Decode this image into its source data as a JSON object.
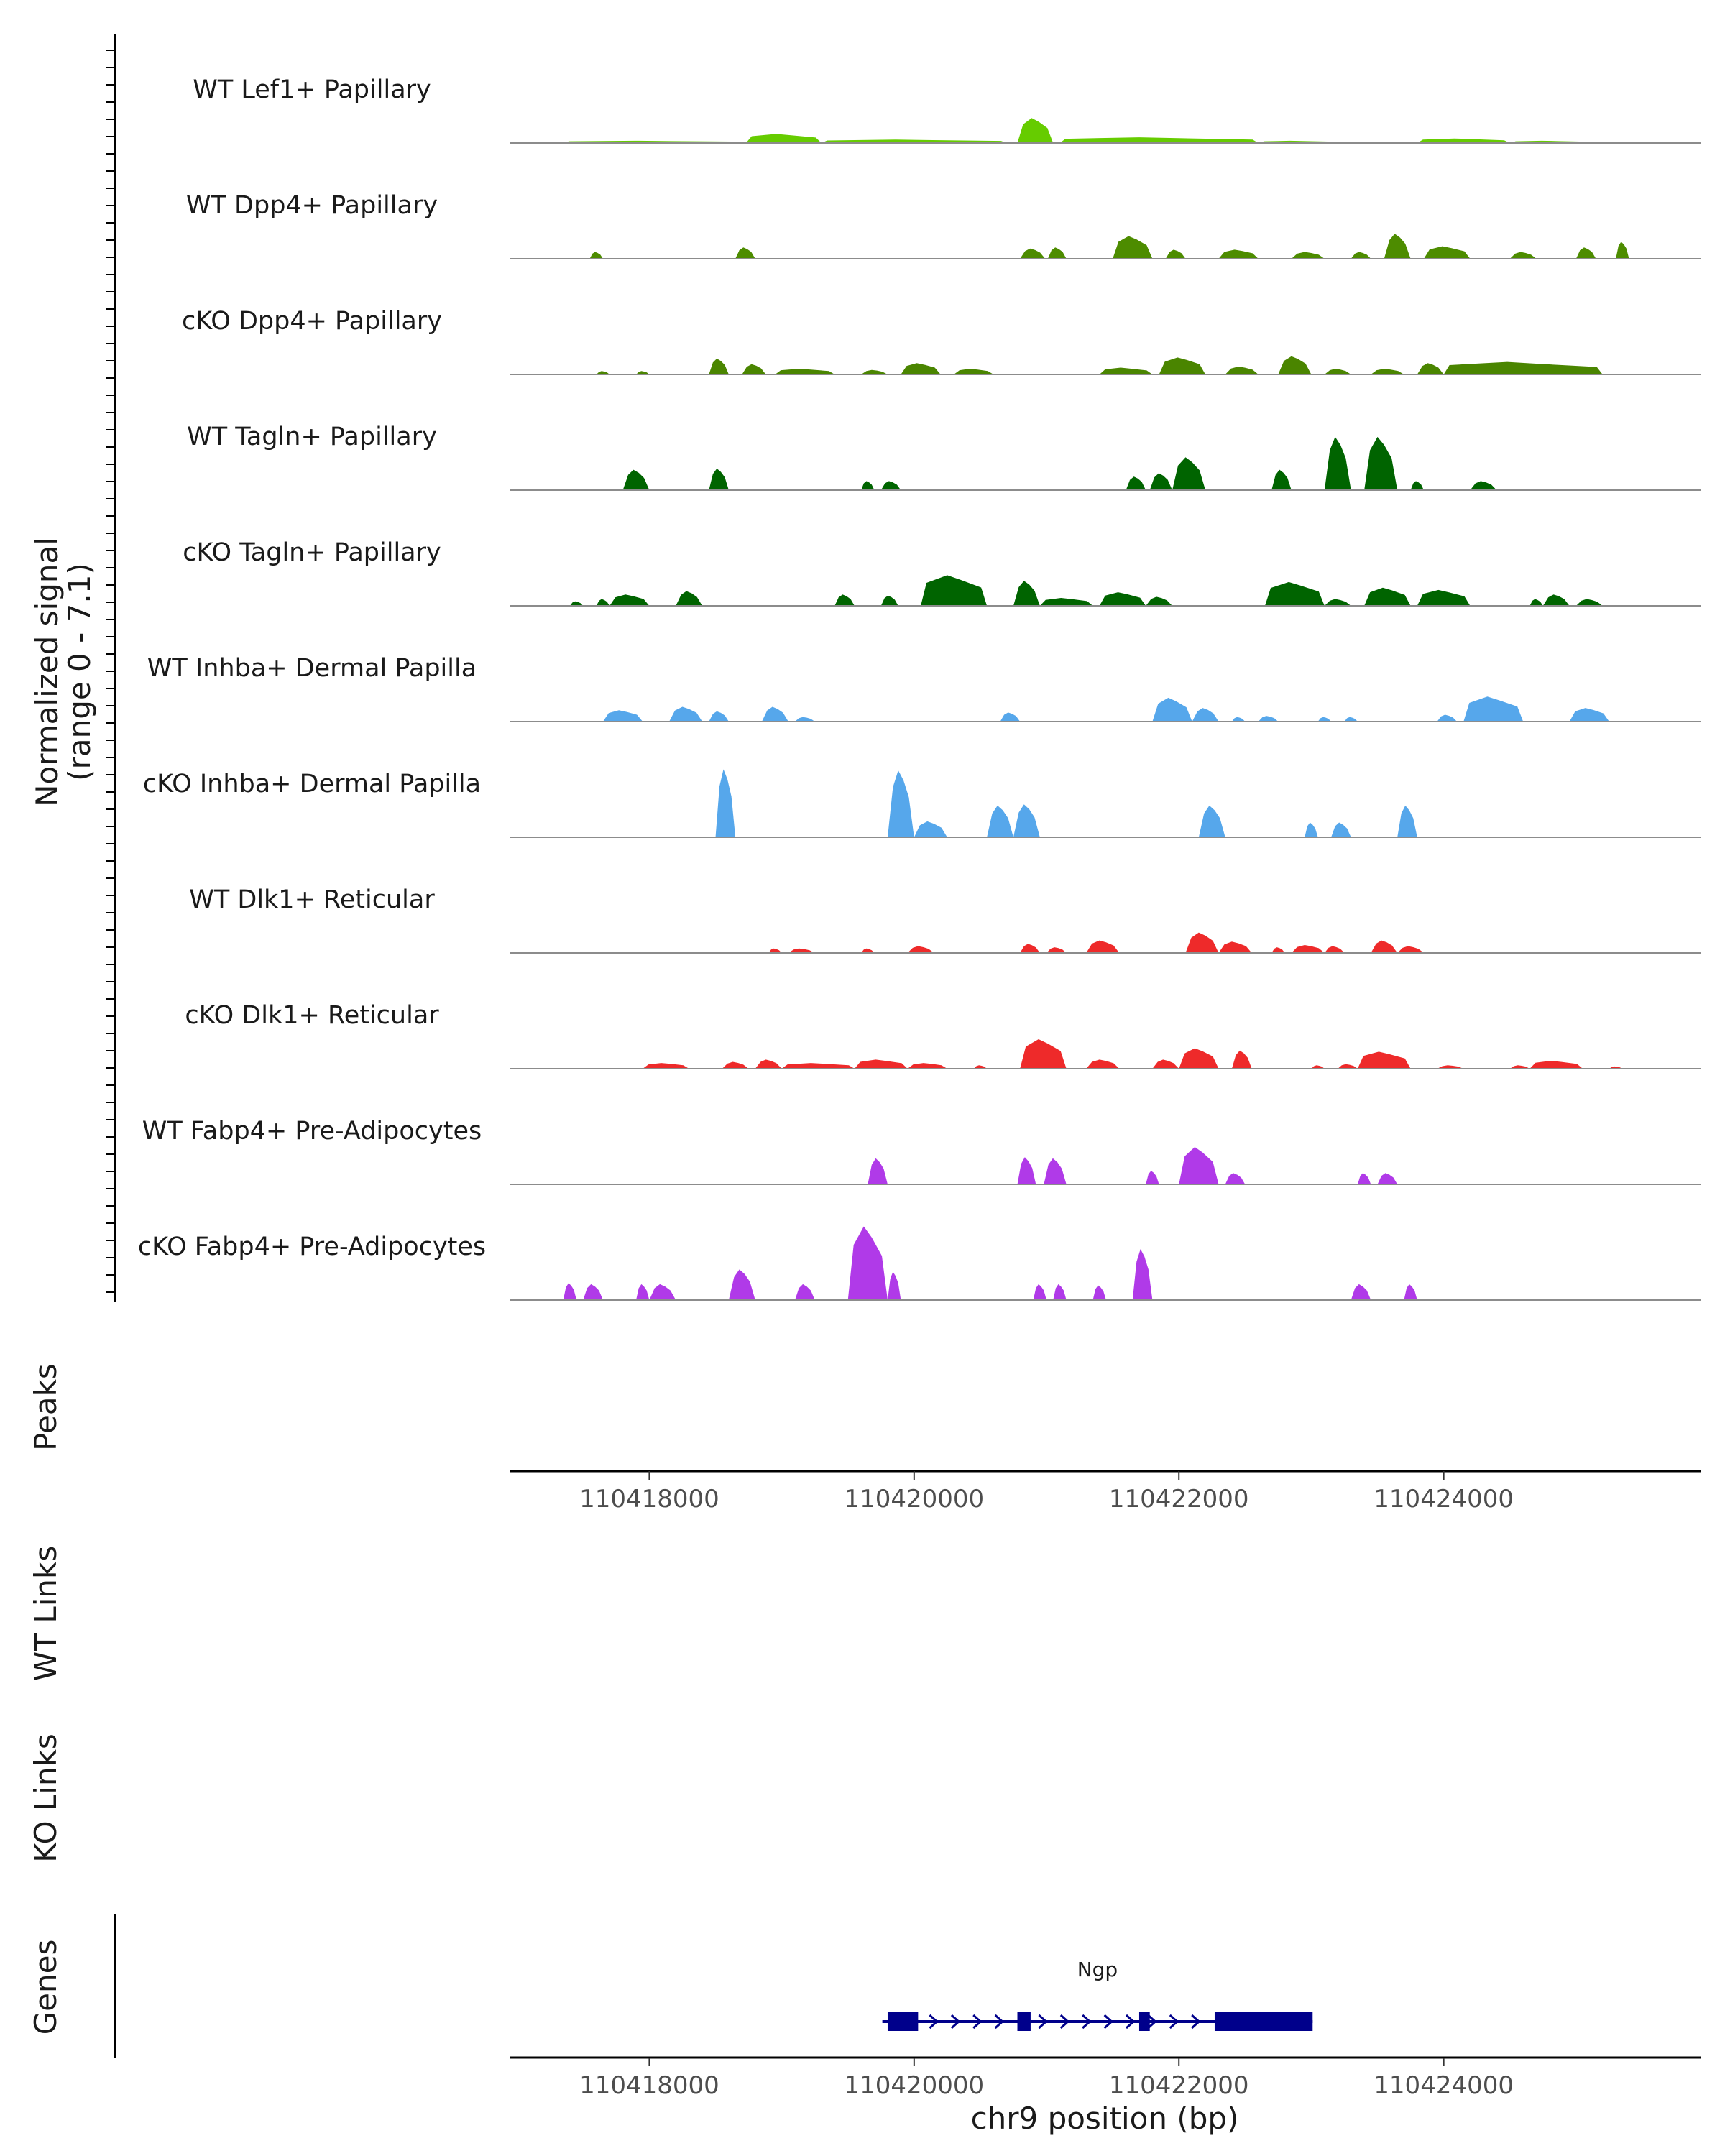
{
  "chart_data": {
    "type": "coverage",
    "chromosome": "chr9",
    "xlim": [
      110416950,
      110425940
    ],
    "xlabel": "chr9 position (bp)",
    "x_ticks": [
      110418000,
      110420000,
      110422000,
      110424000
    ],
    "x_tick_labels": [
      "110418000",
      "110420000",
      "110422000",
      "110424000"
    ],
    "signal_ylabel": "Normalized signal",
    "signal_ylabel_range": "(range 0 - 7.1)",
    "ylim": [
      0,
      7.1
    ],
    "tracks": [
      {
        "name": "WT Lef1+ Papillary",
        "color": "#66cc00",
        "peaks": [
          [
            110417350,
            110418700,
            0.2
          ],
          [
            110418730,
            110419300,
            0.8
          ],
          [
            110419300,
            110420700,
            0.3
          ],
          [
            110420780,
            110421050,
            2.2
          ],
          [
            110421100,
            110422600,
            0.5
          ],
          [
            110422600,
            110423200,
            0.2
          ],
          [
            110423800,
            110424500,
            0.4
          ],
          [
            110424500,
            110425100,
            0.2
          ]
        ]
      },
      {
        "name": "WT Dpp4+ Papillary",
        "color": "#4d8c00",
        "peaks": [
          [
            110417550,
            110417650,
            0.6
          ],
          [
            110418650,
            110418800,
            1.0
          ],
          [
            110420800,
            110420990,
            0.9
          ],
          [
            110421010,
            110421150,
            1.0
          ],
          [
            110421500,
            110421800,
            2.0
          ],
          [
            110421900,
            110422050,
            0.8
          ],
          [
            110422300,
            110422600,
            0.8
          ],
          [
            110422850,
            110423100,
            0.6
          ],
          [
            110423300,
            110423450,
            0.6
          ],
          [
            110423550,
            110423750,
            2.2
          ],
          [
            110423850,
            110424200,
            1.1
          ],
          [
            110424500,
            110424700,
            0.6
          ],
          [
            110425000,
            110425150,
            1.0
          ],
          [
            110425300,
            110425400,
            1.5
          ]
        ]
      },
      {
        "name": "cKO Dpp4+ Papillary",
        "color": "#4a8500",
        "peaks": [
          [
            110417600,
            110417700,
            0.3
          ],
          [
            110417900,
            110418000,
            0.3
          ],
          [
            110418450,
            110418600,
            1.4
          ],
          [
            110418700,
            110418880,
            0.9
          ],
          [
            110418950,
            110419400,
            0.5
          ],
          [
            110419600,
            110419800,
            0.4
          ],
          [
            110419900,
            110420200,
            1.0
          ],
          [
            110420300,
            110420600,
            0.5
          ],
          [
            110421400,
            110421800,
            0.6
          ],
          [
            110421850,
            110422200,
            1.5
          ],
          [
            110422350,
            110422600,
            0.7
          ],
          [
            110422750,
            110423000,
            1.6
          ],
          [
            110423100,
            110423300,
            0.5
          ],
          [
            110423450,
            110423700,
            0.5
          ],
          [
            110423800,
            110424000,
            1.0
          ],
          [
            110424000,
            110425200,
            1.1
          ]
        ]
      },
      {
        "name": "WT Tagln+ Papillary",
        "color": "#006400",
        "peaks": [
          [
            110417800,
            110418000,
            1.8
          ],
          [
            110418450,
            110418600,
            1.9
          ],
          [
            110419600,
            110419700,
            0.8
          ],
          [
            110419750,
            110419900,
            0.8
          ],
          [
            110421600,
            110421750,
            1.2
          ],
          [
            110421780,
            110421950,
            1.5
          ],
          [
            110421950,
            110422200,
            2.9
          ],
          [
            110422700,
            110422850,
            1.8
          ],
          [
            110423100,
            110423300,
            4.7
          ],
          [
            110423400,
            110423650,
            4.7
          ],
          [
            110423750,
            110423850,
            0.8
          ],
          [
            110424200,
            110424400,
            0.8
          ]
        ]
      },
      {
        "name": "cKO Tagln+ Papillary",
        "color": "#006400",
        "peaks": [
          [
            110417400,
            110417500,
            0.4
          ],
          [
            110417600,
            110417700,
            0.6
          ],
          [
            110417700,
            110418000,
            1.0
          ],
          [
            110418200,
            110418400,
            1.3
          ],
          [
            110419400,
            110419550,
            1.0
          ],
          [
            110419750,
            110419880,
            0.9
          ],
          [
            110420050,
            110420550,
            2.7
          ],
          [
            110420750,
            110420950,
            2.2
          ],
          [
            110420950,
            110421350,
            0.7
          ],
          [
            110421400,
            110421750,
            1.2
          ],
          [
            110421750,
            110421950,
            0.8
          ],
          [
            110422650,
            110423100,
            2.1
          ],
          [
            110423100,
            110423300,
            0.6
          ],
          [
            110423400,
            110423750,
            1.6
          ],
          [
            110423800,
            110424200,
            1.4
          ],
          [
            110424650,
            110424750,
            0.6
          ],
          [
            110424750,
            110424950,
            1.0
          ],
          [
            110425000,
            110425200,
            0.6
          ]
        ]
      },
      {
        "name": "WT Inhba+ Dermal Papilla",
        "color": "#56a7eb",
        "peaks": [
          [
            110417650,
            110417950,
            1.0
          ],
          [
            110418150,
            110418400,
            1.3
          ],
          [
            110418450,
            110418600,
            0.9
          ],
          [
            110418850,
            110419050,
            1.3
          ],
          [
            110419100,
            110419250,
            0.4
          ],
          [
            110420650,
            110420800,
            0.8
          ],
          [
            110421800,
            110422100,
            2.1
          ],
          [
            110422100,
            110422300,
            1.2
          ],
          [
            110422400,
            110422500,
            0.4
          ],
          [
            110422600,
            110422750,
            0.5
          ],
          [
            110423050,
            110423150,
            0.4
          ],
          [
            110423250,
            110423350,
            0.4
          ],
          [
            110423950,
            110424100,
            0.6
          ],
          [
            110424150,
            110424600,
            2.2
          ],
          [
            110424950,
            110425250,
            1.2
          ]
        ]
      },
      {
        "name": "cKO Inhba+ Dermal Papilla",
        "color": "#56a7eb",
        "peaks": [
          [
            110418500,
            110418650,
            6.0
          ],
          [
            110419800,
            110420000,
            5.9
          ],
          [
            110420000,
            110420250,
            1.4
          ],
          [
            110420550,
            110420750,
            2.8
          ],
          [
            110420750,
            110420950,
            2.9
          ],
          [
            110422150,
            110422350,
            2.8
          ],
          [
            110422950,
            110423050,
            1.3
          ],
          [
            110423150,
            110423300,
            1.3
          ],
          [
            110423650,
            110423800,
            2.8
          ]
        ]
      },
      {
        "name": "WT Dlk1+ Reticular",
        "color": "#ee2a2a",
        "peaks": [
          [
            110418900,
            110419000,
            0.4
          ],
          [
            110419050,
            110419250,
            0.4
          ],
          [
            110419600,
            110419700,
            0.4
          ],
          [
            110419950,
            110420150,
            0.6
          ],
          [
            110420800,
            110420950,
            0.8
          ],
          [
            110421000,
            110421150,
            0.5
          ],
          [
            110421300,
            110421550,
            1.1
          ],
          [
            110422050,
            110422300,
            1.8
          ],
          [
            110422300,
            110422550,
            1.0
          ],
          [
            110422700,
            110422800,
            0.5
          ],
          [
            110422850,
            110423100,
            0.7
          ],
          [
            110423100,
            110423250,
            0.6
          ],
          [
            110423450,
            110423650,
            1.1
          ],
          [
            110423650,
            110423850,
            0.6
          ]
        ]
      },
      {
        "name": "cKO Dlk1+ Reticular",
        "color": "#ee2a2a",
        "peaks": [
          [
            110417950,
            110418300,
            0.5
          ],
          [
            110418550,
            110418750,
            0.6
          ],
          [
            110418800,
            110419000,
            0.8
          ],
          [
            110419000,
            110419550,
            0.5
          ],
          [
            110419550,
            110419950,
            0.8
          ],
          [
            110419950,
            110420250,
            0.5
          ],
          [
            110420450,
            110420550,
            0.3
          ],
          [
            110420800,
            110421150,
            2.6
          ],
          [
            110421300,
            110421550,
            0.8
          ],
          [
            110421800,
            110422000,
            0.8
          ],
          [
            110422000,
            110422300,
            1.8
          ],
          [
            110422400,
            110422550,
            1.6
          ],
          [
            110423000,
            110423100,
            0.3
          ],
          [
            110423200,
            110423350,
            0.4
          ],
          [
            110423350,
            110423750,
            1.5
          ],
          [
            110423950,
            110424150,
            0.3
          ],
          [
            110424500,
            110424650,
            0.3
          ],
          [
            110424650,
            110425050,
            0.7
          ],
          [
            110425250,
            110425350,
            0.2
          ]
        ]
      },
      {
        "name": "WT Fabp4+ Pre-Adipocytes",
        "color": "#b03ae8",
        "peaks": [
          [
            110419650,
            110419800,
            2.3
          ],
          [
            110420780,
            110420920,
            2.4
          ],
          [
            110420980,
            110421150,
            2.3
          ],
          [
            110421750,
            110421850,
            1.2
          ],
          [
            110422000,
            110422300,
            3.3
          ],
          [
            110422350,
            110422500,
            1.0
          ],
          [
            110423350,
            110423450,
            1.0
          ],
          [
            110423500,
            110423650,
            1.0
          ]
        ]
      },
      {
        "name": "cKO Fabp4+ Pre-Adipocytes",
        "color": "#b03ae8",
        "peaks": [
          [
            110417350,
            110417450,
            1.5
          ],
          [
            110417500,
            110417650,
            1.4
          ],
          [
            110417900,
            110418000,
            1.4
          ],
          [
            110418000,
            110418200,
            1.4
          ],
          [
            110418600,
            110418800,
            2.7
          ],
          [
            110419100,
            110419250,
            1.4
          ],
          [
            110419500,
            110419800,
            6.5
          ],
          [
            110419800,
            110419900,
            2.5
          ],
          [
            110420900,
            110421000,
            1.4
          ],
          [
            110421050,
            110421150,
            1.4
          ],
          [
            110421350,
            110421450,
            1.3
          ],
          [
            110421650,
            110421800,
            4.5
          ],
          [
            110423300,
            110423450,
            1.4
          ],
          [
            110423700,
            110423800,
            1.4
          ]
        ]
      }
    ],
    "panels": {
      "peaks": "Peaks",
      "wt_links": "WT Links",
      "ko_links": "KO Links",
      "genes": "Genes"
    },
    "gene": {
      "name": "Ngp",
      "start": 110419760,
      "end": 110423010,
      "strand": "+",
      "exons": [
        [
          110419800,
          110420030
        ],
        [
          110420780,
          110420880
        ],
        [
          110421700,
          110421780
        ],
        [
          110422270,
          110423010
        ]
      ],
      "color": "#00008b"
    }
  }
}
